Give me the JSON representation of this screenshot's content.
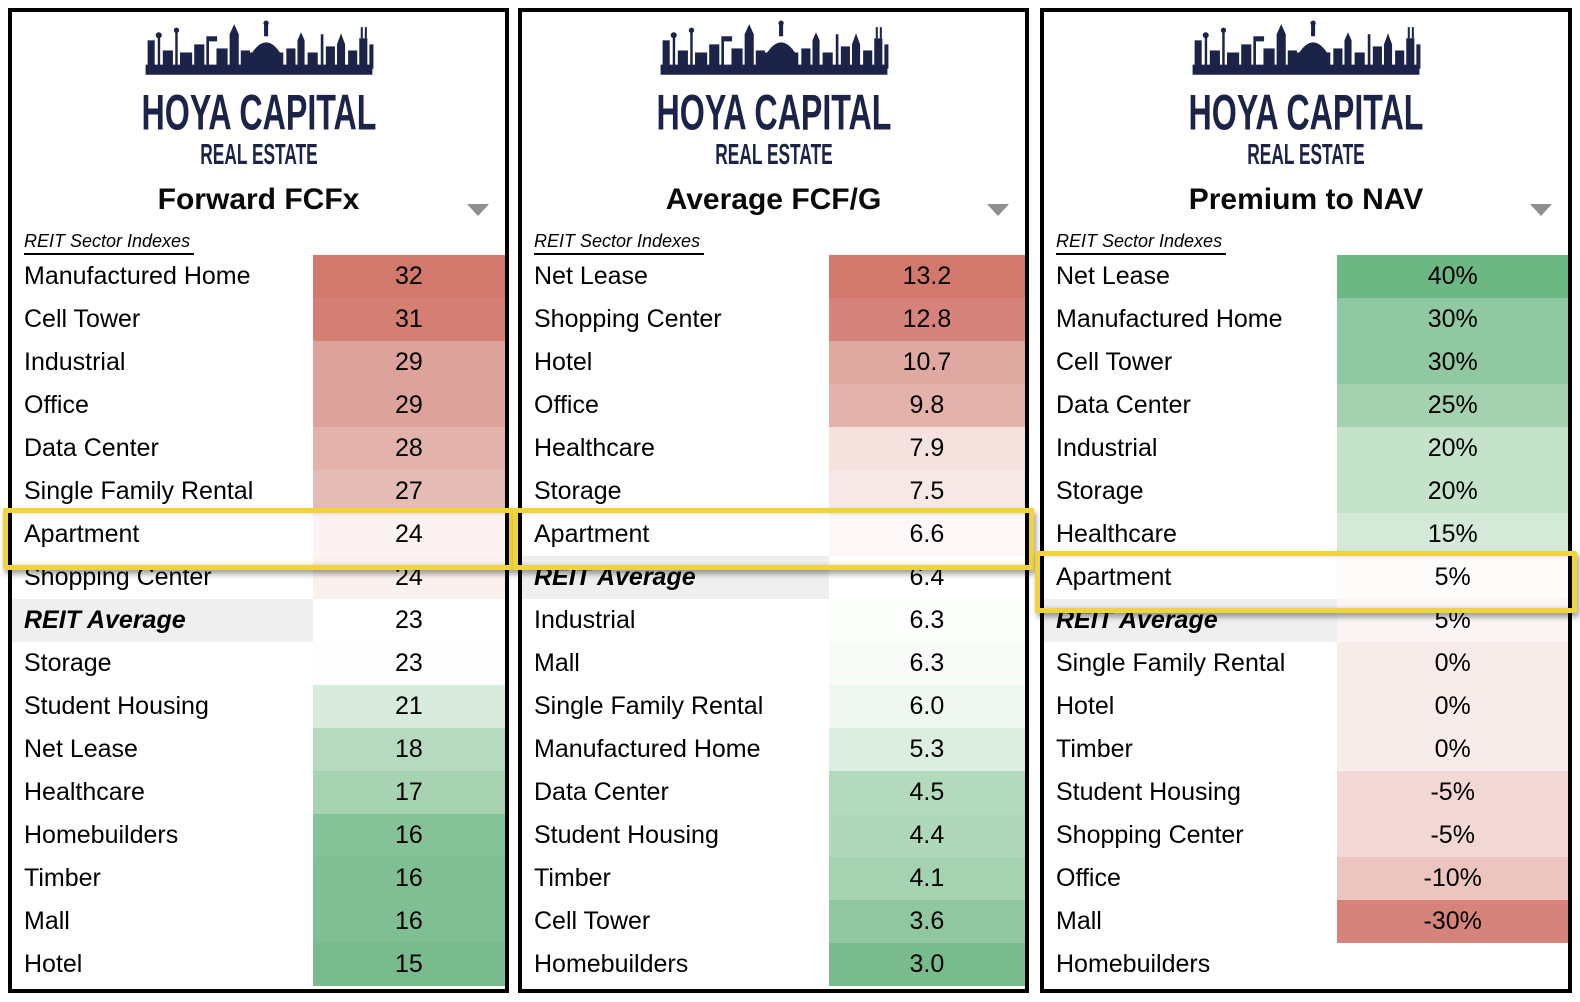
{
  "brand": {
    "logo_title": "HOYA CAPITAL",
    "logo_subtitle": "REAL ESTATE"
  },
  "colors": {
    "logo_navy": "#1b2348",
    "panel_border": "#000000",
    "average_row_bg": "#efefef",
    "highlight_border": "#f0d43c",
    "caret_gray": "#8e8e8e",
    "heat_red_max": "#d3786d",
    "heat_green_max": "#6db785"
  },
  "highlight": {
    "sector": "Apartment",
    "border_color": "#f0d43c"
  },
  "chart_data": [
    {
      "type": "table",
      "title": "Forward FCFx",
      "subtitle": "REIT Sector Indexes",
      "legend_note": "conditional heat coloring: high=red, low=green",
      "rows": [
        {
          "sector": "Manufactured Home",
          "value": "32",
          "bg": "#d3786d",
          "kind": "sector"
        },
        {
          "sector": "Cell Tower",
          "value": "31",
          "bg": "#d57e73",
          "kind": "sector"
        },
        {
          "sector": "Industrial",
          "value": "29",
          "bg": "#dda29a",
          "kind": "sector"
        },
        {
          "sector": "Office",
          "value": "29",
          "bg": "#dda29a",
          "kind": "sector"
        },
        {
          "sector": "Data Center",
          "value": "28",
          "bg": "#e2b2ab",
          "kind": "sector"
        },
        {
          "sector": "Single Family Rental",
          "value": "27",
          "bg": "#e5bcb5",
          "kind": "sector"
        },
        {
          "sector": "Apartment",
          "value": "24",
          "bg": "#fbf2f1",
          "kind": "highlight"
        },
        {
          "sector": "Shopping Center",
          "value": "24",
          "bg": "#faf0ee",
          "kind": "sector"
        },
        {
          "sector": "REIT Average",
          "value": "23",
          "bg": "#ffffff",
          "kind": "average"
        },
        {
          "sector": "Storage",
          "value": "23",
          "bg": "#fefdfd",
          "kind": "sector"
        },
        {
          "sector": "Student Housing",
          "value": "21",
          "bg": "#d8ebdc",
          "kind": "sector"
        },
        {
          "sector": "Net Lease",
          "value": "18",
          "bg": "#b5dabf",
          "kind": "sector"
        },
        {
          "sector": "Healthcare",
          "value": "17",
          "bg": "#a8d3b3",
          "kind": "sector"
        },
        {
          "sector": "Homebuilders",
          "value": "16",
          "bg": "#86c297",
          "kind": "sector"
        },
        {
          "sector": "Timber",
          "value": "16",
          "bg": "#80bf93",
          "kind": "sector"
        },
        {
          "sector": "Mall",
          "value": "16",
          "bg": "#80bf93",
          "kind": "sector"
        },
        {
          "sector": "Hotel",
          "value": "15",
          "bg": "#7abb8e",
          "kind": "sector"
        }
      ]
    },
    {
      "type": "table",
      "title": "Average FCF/G",
      "subtitle": "REIT Sector Indexes",
      "legend_note": "conditional heat coloring: high=red, low=green",
      "rows": [
        {
          "sector": "Net Lease",
          "value": "13.2",
          "bg": "#d3786d",
          "kind": "sector"
        },
        {
          "sector": "Shopping Center",
          "value": "12.8",
          "bg": "#d6847b",
          "kind": "sector"
        },
        {
          "sector": "Hotel",
          "value": "10.7",
          "bg": "#dfa9a1",
          "kind": "sector"
        },
        {
          "sector": "Office",
          "value": "9.8",
          "bg": "#e2b2ab",
          "kind": "sector"
        },
        {
          "sector": "Healthcare",
          "value": "7.9",
          "bg": "#f5e2df",
          "kind": "sector"
        },
        {
          "sector": "Storage",
          "value": "7.5",
          "bg": "#f7e8e5",
          "kind": "sector"
        },
        {
          "sector": "Apartment",
          "value": "6.6",
          "bg": "#fdf8f7",
          "kind": "highlight"
        },
        {
          "sector": "REIT Average",
          "value": "6.4",
          "bg": "#ffffff",
          "kind": "average"
        },
        {
          "sector": "Industrial",
          "value": "6.3",
          "bg": "#fcfefc",
          "kind": "sector"
        },
        {
          "sector": "Mall",
          "value": "6.3",
          "bg": "#f8fbf8",
          "kind": "sector"
        },
        {
          "sector": "Single Family Rental",
          "value": "6.0",
          "bg": "#eff7f1",
          "kind": "sector"
        },
        {
          "sector": "Manufactured Home",
          "value": "5.3",
          "bg": "#dceedf",
          "kind": "sector"
        },
        {
          "sector": "Data Center",
          "value": "4.5",
          "bg": "#b3dabd",
          "kind": "sector"
        },
        {
          "sector": "Student Housing",
          "value": "4.4",
          "bg": "#afd8ba",
          "kind": "sector"
        },
        {
          "sector": "Timber",
          "value": "4.1",
          "bg": "#a5d2b1",
          "kind": "sector"
        },
        {
          "sector": "Cell Tower",
          "value": "3.6",
          "bg": "#90c7a1",
          "kind": "sector"
        },
        {
          "sector": "Homebuilders",
          "value": "3.0",
          "bg": "#7abb8e",
          "kind": "sector"
        }
      ]
    },
    {
      "type": "table",
      "title": "Premium to NAV",
      "subtitle": "REIT Sector Indexes",
      "legend_note": "conditional heat coloring: high=green, low=red",
      "rows": [
        {
          "sector": "Net Lease",
          "value": "40%",
          "bg": "#6db785",
          "kind": "sector"
        },
        {
          "sector": "Manufactured Home",
          "value": "30%",
          "bg": "#8fc8a1",
          "kind": "sector"
        },
        {
          "sector": "Cell Tower",
          "value": "30%",
          "bg": "#8fc8a1",
          "kind": "sector"
        },
        {
          "sector": "Data Center",
          "value": "25%",
          "bg": "#a4d1b0",
          "kind": "sector"
        },
        {
          "sector": "Industrial",
          "value": "20%",
          "bg": "#c5e3cb",
          "kind": "sector"
        },
        {
          "sector": "Storage",
          "value": "20%",
          "bg": "#c5e3cb",
          "kind": "sector"
        },
        {
          "sector": "Healthcare",
          "value": "15%",
          "bg": "#d4e9d8",
          "kind": "sector"
        },
        {
          "sector": "Apartment",
          "value": "5%",
          "bg": "#fdfcfb",
          "kind": "highlight"
        },
        {
          "sector": "REIT Average",
          "value": "5%",
          "bg": "#fbf6f5",
          "kind": "average"
        },
        {
          "sector": "Single Family Rental",
          "value": "0%",
          "bg": "#f8eceb",
          "kind": "sector"
        },
        {
          "sector": "Hotel",
          "value": "0%",
          "bg": "#f8eceb",
          "kind": "sector"
        },
        {
          "sector": "Timber",
          "value": "0%",
          "bg": "#f8eceb",
          "kind": "sector"
        },
        {
          "sector": "Student Housing",
          "value": "-5%",
          "bg": "#f2d8d5",
          "kind": "sector"
        },
        {
          "sector": "Shopping Center",
          "value": "-5%",
          "bg": "#f2d8d5",
          "kind": "sector"
        },
        {
          "sector": "Office",
          "value": "-10%",
          "bg": "#ecc5c0",
          "kind": "sector"
        },
        {
          "sector": "Mall",
          "value": "-30%",
          "bg": "#d5837b",
          "kind": "sector"
        },
        {
          "sector": "Homebuilders",
          "value": "",
          "bg": "",
          "kind": "sector"
        }
      ]
    }
  ]
}
